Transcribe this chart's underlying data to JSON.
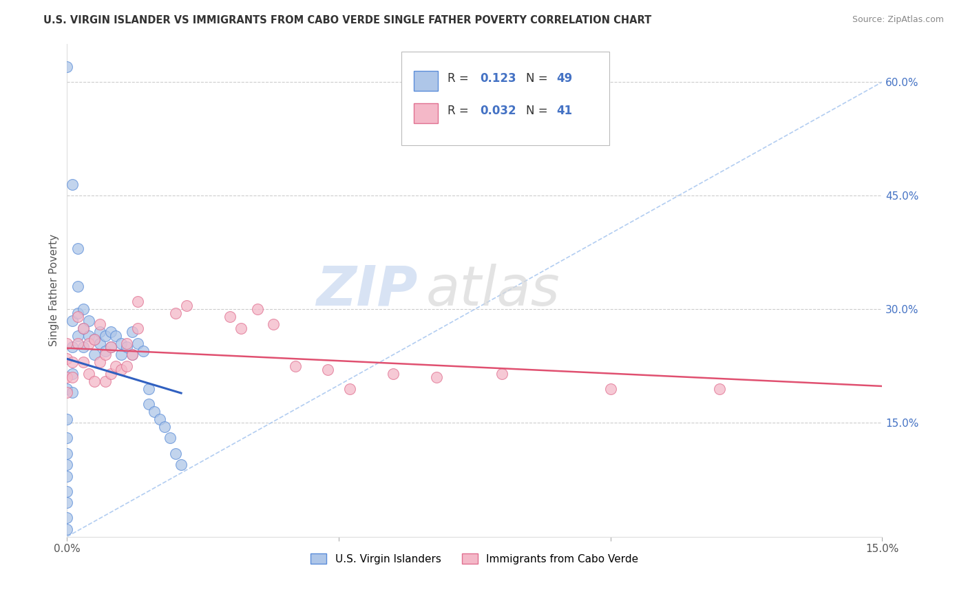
{
  "title": "U.S. VIRGIN ISLANDER VS IMMIGRANTS FROM CABO VERDE SINGLE FATHER POVERTY CORRELATION CHART",
  "source": "Source: ZipAtlas.com",
  "ylabel": "Single Father Poverty",
  "xlim": [
    0.0,
    0.15
  ],
  "ylim": [
    0.0,
    0.65
  ],
  "yticks_right": [
    0.15,
    0.3,
    0.45,
    0.6
  ],
  "ytick_labels_right": [
    "15.0%",
    "30.0%",
    "45.0%",
    "60.0%"
  ],
  "series1_label": "U.S. Virgin Islanders",
  "series2_label": "Immigrants from Cabo Verde",
  "series1_color": "#aec6e8",
  "series2_color": "#f4b8c8",
  "series1_edge": "#5b8dd9",
  "series2_edge": "#e07090",
  "trendline1_color": "#3060c0",
  "trendline2_color": "#e05070",
  "background_color": "#ffffff",
  "watermark_zip": "ZIP",
  "watermark_atlas": "atlas",
  "diag_color": "#aac8f0",
  "series1_x": [
    0.0,
    0.0,
    0.0,
    0.0,
    0.0,
    0.0,
    0.0,
    0.0,
    0.0,
    0.0,
    0.0,
    0.001,
    0.001,
    0.001,
    0.001,
    0.001,
    0.002,
    0.002,
    0.002,
    0.002,
    0.003,
    0.003,
    0.003,
    0.004,
    0.004,
    0.005,
    0.005,
    0.006,
    0.006,
    0.007,
    0.007,
    0.008,
    0.008,
    0.009,
    0.01,
    0.01,
    0.011,
    0.012,
    0.012,
    0.013,
    0.014,
    0.015,
    0.015,
    0.016,
    0.017,
    0.018,
    0.019,
    0.02,
    0.021
  ],
  "series1_y": [
    0.62,
    0.195,
    0.155,
    0.13,
    0.11,
    0.095,
    0.08,
    0.06,
    0.045,
    0.025,
    0.01,
    0.465,
    0.285,
    0.25,
    0.215,
    0.19,
    0.38,
    0.33,
    0.295,
    0.265,
    0.3,
    0.275,
    0.25,
    0.285,
    0.265,
    0.26,
    0.24,
    0.27,
    0.255,
    0.265,
    0.245,
    0.27,
    0.25,
    0.265,
    0.255,
    0.24,
    0.25,
    0.27,
    0.24,
    0.255,
    0.245,
    0.195,
    0.175,
    0.165,
    0.155,
    0.145,
    0.13,
    0.11,
    0.095
  ],
  "series2_x": [
    0.0,
    0.0,
    0.0,
    0.0,
    0.001,
    0.001,
    0.002,
    0.002,
    0.003,
    0.003,
    0.004,
    0.004,
    0.005,
    0.005,
    0.006,
    0.006,
    0.007,
    0.007,
    0.008,
    0.008,
    0.009,
    0.01,
    0.011,
    0.011,
    0.012,
    0.013,
    0.013,
    0.02,
    0.022,
    0.03,
    0.032,
    0.035,
    0.038,
    0.042,
    0.048,
    0.052,
    0.06,
    0.068,
    0.08,
    0.1,
    0.12
  ],
  "series2_y": [
    0.255,
    0.235,
    0.21,
    0.19,
    0.23,
    0.21,
    0.29,
    0.255,
    0.275,
    0.23,
    0.255,
    0.215,
    0.26,
    0.205,
    0.28,
    0.23,
    0.24,
    0.205,
    0.25,
    0.215,
    0.225,
    0.22,
    0.255,
    0.225,
    0.24,
    0.31,
    0.275,
    0.295,
    0.305,
    0.29,
    0.275,
    0.3,
    0.28,
    0.225,
    0.22,
    0.195,
    0.215,
    0.21,
    0.215,
    0.195,
    0.195
  ]
}
